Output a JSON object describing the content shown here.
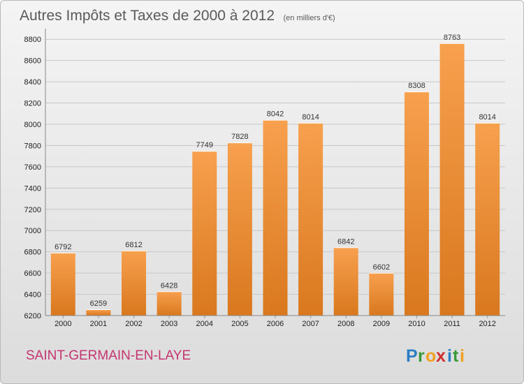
{
  "chart_data": {
    "type": "bar",
    "title": "Autres Impôts et Taxes de 2000 à 2012",
    "subtitle": "(en milliers d'€)",
    "categories": [
      "2000",
      "2001",
      "2002",
      "2003",
      "2004",
      "2005",
      "2006",
      "2007",
      "2008",
      "2009",
      "2010",
      "2011",
      "2012"
    ],
    "values": [
      6792,
      6259,
      6812,
      6428,
      7749,
      7828,
      8042,
      8014,
      6842,
      6602,
      8308,
      8763,
      8014
    ],
    "ylim": [
      6200,
      8900
    ],
    "yticks": [
      6200,
      6400,
      6600,
      6800,
      7000,
      7200,
      7400,
      7600,
      7800,
      8000,
      8200,
      8400,
      8600,
      8800
    ],
    "grid": true,
    "bar_color_top": "#f7a04e",
    "bar_color_bottom": "#d9781e"
  },
  "footer": {
    "city": "SAINT-GERMAIN-EN-LAYE",
    "city_color": "#c4356f"
  },
  "logo": {
    "text": "Proxiti",
    "letters": [
      "P",
      "r",
      "o",
      "x",
      "i",
      "t",
      "i"
    ],
    "colors": [
      "#2b7fc4",
      "#3a9a3a",
      "#f0a020",
      "#d03030",
      "#2b7fc4",
      "#3a9a3a",
      "#f0a020"
    ]
  }
}
